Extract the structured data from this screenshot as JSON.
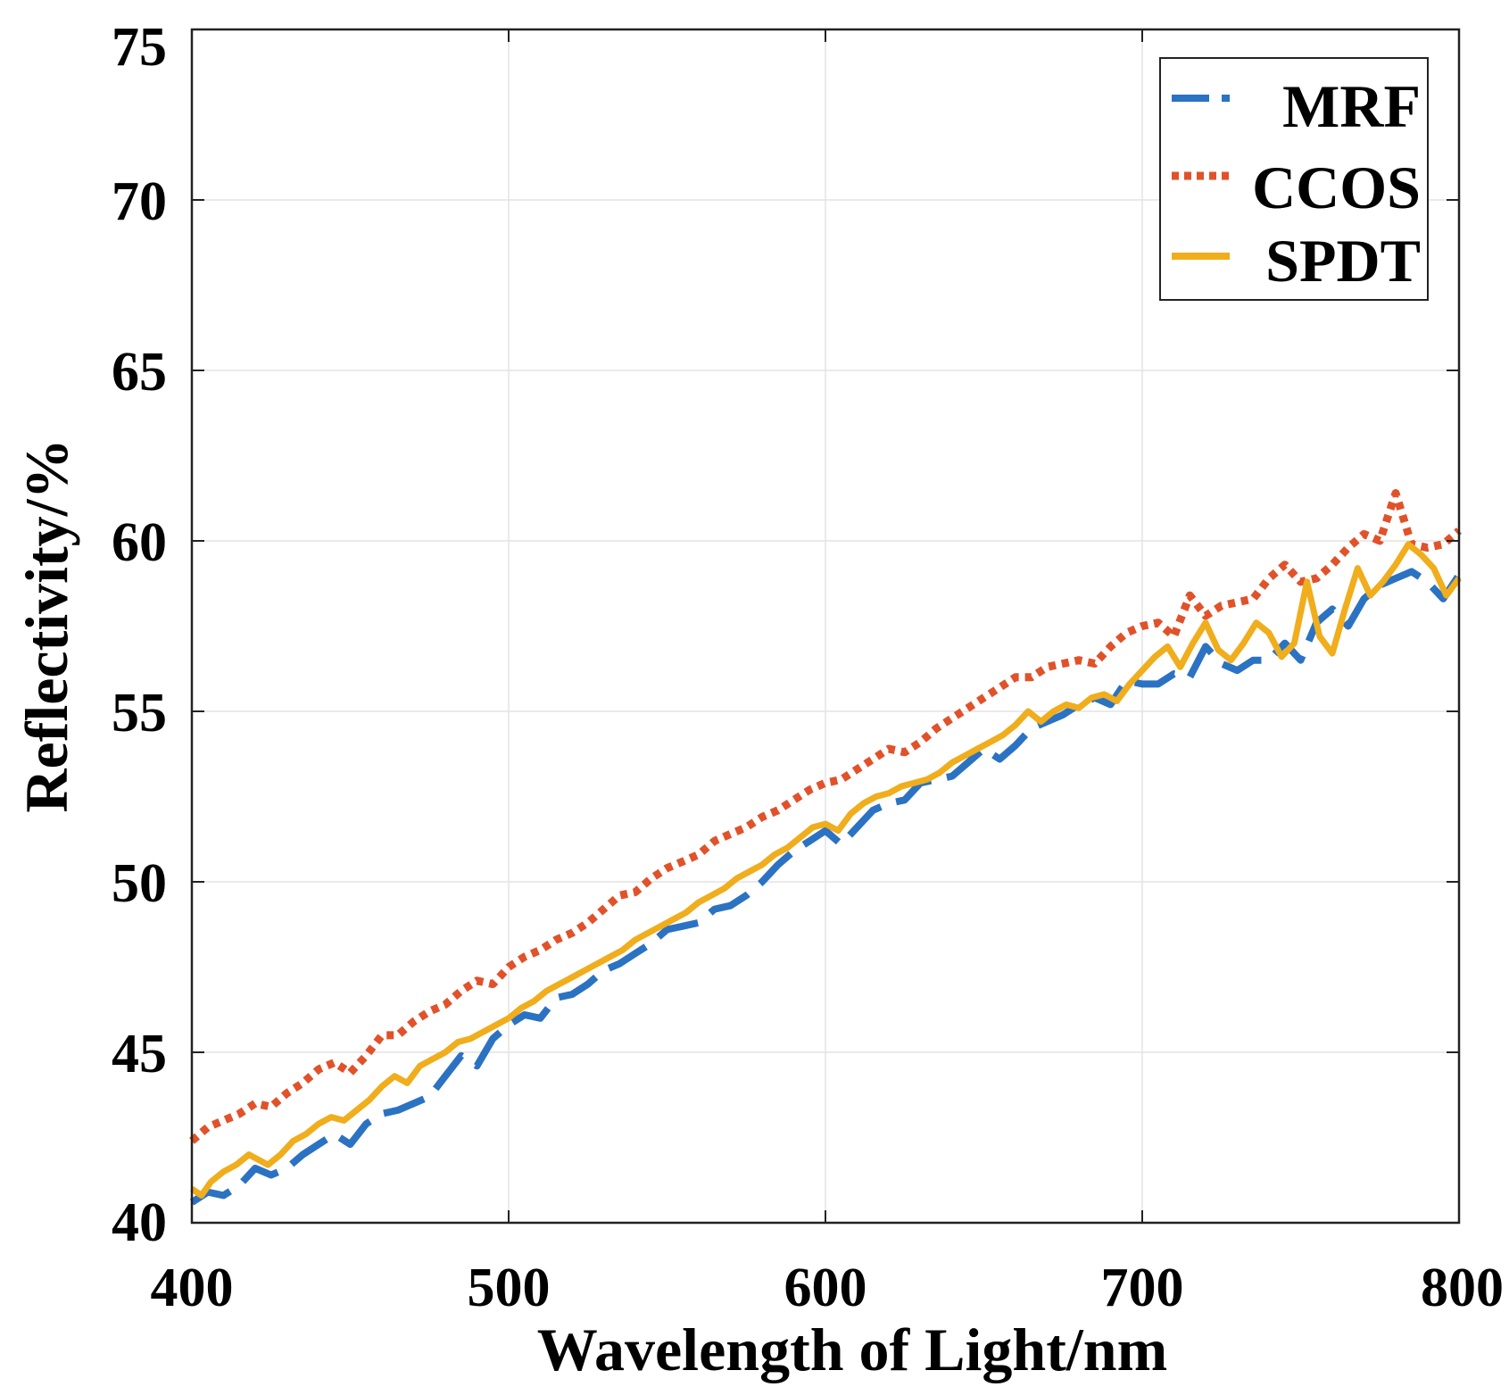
{
  "chart_data": {
    "type": "line",
    "title": "",
    "xlabel": "Wavelength of Light/nm",
    "ylabel": "Reflectivity/%",
    "xlim": [
      400,
      800
    ],
    "ylim": [
      40,
      75
    ],
    "xticks": [
      400,
      500,
      600,
      700,
      800
    ],
    "yticks": [
      40,
      45,
      50,
      55,
      60,
      65,
      70,
      75
    ],
    "grid": true,
    "legend_position": "top-right",
    "series": [
      {
        "name": "MRF",
        "color": "#2b72c3",
        "style": "dashed",
        "x": [
          400,
          405,
          410,
          415,
          420,
          425,
          430,
          435,
          440,
          445,
          450,
          455,
          460,
          465,
          470,
          475,
          480,
          485,
          490,
          495,
          500,
          505,
          510,
          515,
          520,
          525,
          530,
          535,
          540,
          545,
          550,
          555,
          560,
          565,
          570,
          575,
          580,
          585,
          590,
          595,
          600,
          605,
          610,
          615,
          620,
          625,
          630,
          635,
          640,
          645,
          650,
          655,
          660,
          665,
          670,
          675,
          680,
          685,
          690,
          695,
          700,
          705,
          710,
          715,
          720,
          725,
          730,
          735,
          740,
          745,
          750,
          755,
          760,
          765,
          770,
          775,
          780,
          785,
          790,
          795,
          800
        ],
        "y": [
          40.6,
          40.9,
          40.8,
          41.1,
          41.6,
          41.4,
          41.6,
          42.0,
          42.3,
          42.6,
          42.3,
          42.9,
          43.2,
          43.3,
          43.5,
          43.7,
          44.3,
          44.9,
          44.6,
          45.4,
          45.8,
          46.1,
          46.0,
          46.6,
          46.7,
          47.0,
          47.4,
          47.6,
          47.9,
          48.2,
          48.6,
          48.7,
          48.8,
          49.2,
          49.3,
          49.6,
          50.0,
          50.5,
          50.9,
          51.2,
          51.5,
          51.1,
          51.6,
          52.1,
          52.3,
          52.4,
          52.9,
          53.0,
          53.1,
          53.5,
          53.9,
          53.6,
          54.0,
          54.5,
          54.7,
          54.9,
          55.2,
          55.4,
          55.2,
          55.9,
          55.8,
          55.8,
          56.1,
          56.0,
          56.9,
          56.4,
          56.2,
          56.5,
          56.5,
          57.0,
          56.5,
          57.6,
          58.0,
          57.5,
          58.3,
          58.7,
          58.9,
          59.1,
          58.8,
          58.3,
          59.0
        ]
      },
      {
        "name": "CCOS",
        "color": "#e1522a",
        "style": "dotted",
        "x": [
          400,
          405,
          410,
          415,
          420,
          425,
          430,
          435,
          440,
          445,
          450,
          455,
          460,
          465,
          470,
          475,
          480,
          485,
          490,
          495,
          500,
          505,
          510,
          515,
          520,
          525,
          530,
          535,
          540,
          545,
          550,
          555,
          560,
          565,
          570,
          575,
          580,
          585,
          590,
          595,
          600,
          605,
          610,
          615,
          620,
          625,
          630,
          635,
          640,
          645,
          650,
          655,
          660,
          665,
          670,
          675,
          680,
          685,
          690,
          695,
          700,
          705,
          710,
          715,
          720,
          725,
          730,
          735,
          740,
          745,
          750,
          755,
          760,
          765,
          770,
          775,
          780,
          785,
          790,
          795,
          800
        ],
        "y": [
          42.4,
          42.8,
          43.0,
          43.2,
          43.5,
          43.4,
          43.8,
          44.1,
          44.5,
          44.7,
          44.4,
          44.9,
          45.5,
          45.5,
          45.9,
          46.2,
          46.4,
          46.8,
          47.1,
          47.0,
          47.5,
          47.8,
          48.0,
          48.3,
          48.5,
          48.8,
          49.2,
          49.6,
          49.7,
          50.1,
          50.4,
          50.6,
          50.8,
          51.2,
          51.4,
          51.6,
          51.9,
          52.1,
          52.4,
          52.7,
          52.9,
          53.0,
          53.3,
          53.6,
          53.9,
          53.8,
          54.1,
          54.5,
          54.8,
          55.1,
          55.4,
          55.7,
          56.0,
          56.0,
          56.3,
          56.4,
          56.5,
          56.4,
          56.9,
          57.3,
          57.5,
          57.6,
          57.2,
          58.4,
          57.8,
          58.1,
          58.2,
          58.3,
          58.9,
          59.3,
          58.8,
          58.9,
          59.3,
          59.8,
          60.2,
          60.0,
          61.4,
          59.9,
          59.8,
          59.9,
          60.3
        ]
      },
      {
        "name": "SPDT",
        "color": "#f0ad1c",
        "style": "solid",
        "x": [
          400,
          403,
          406,
          410,
          414,
          418,
          420,
          424,
          428,
          432,
          436,
          440,
          444,
          448,
          452,
          456,
          460,
          464,
          468,
          472,
          476,
          480,
          484,
          488,
          492,
          496,
          500,
          504,
          508,
          512,
          516,
          520,
          524,
          528,
          532,
          536,
          540,
          544,
          548,
          552,
          556,
          560,
          564,
          568,
          572,
          576,
          580,
          584,
          588,
          592,
          596,
          600,
          604,
          608,
          612,
          616,
          620,
          624,
          628,
          632,
          636,
          640,
          644,
          648,
          652,
          656,
          660,
          664,
          668,
          672,
          676,
          680,
          684,
          688,
          692,
          696,
          700,
          704,
          708,
          712,
          716,
          720,
          724,
          728,
          732,
          736,
          740,
          744,
          748,
          752,
          756,
          760,
          764,
          768,
          772,
          776,
          780,
          784,
          788,
          792,
          796,
          800
        ],
        "y": [
          41.0,
          40.8,
          41.2,
          41.5,
          41.7,
          42.0,
          41.9,
          41.7,
          42.0,
          42.4,
          42.6,
          42.9,
          43.1,
          43.0,
          43.3,
          43.6,
          44.0,
          44.3,
          44.1,
          44.6,
          44.8,
          45.0,
          45.3,
          45.4,
          45.6,
          45.8,
          46.0,
          46.3,
          46.5,
          46.8,
          47.0,
          47.2,
          47.4,
          47.6,
          47.8,
          48.0,
          48.3,
          48.5,
          48.7,
          48.9,
          49.1,
          49.4,
          49.6,
          49.8,
          50.1,
          50.3,
          50.5,
          50.8,
          51.0,
          51.3,
          51.6,
          51.7,
          51.5,
          52.0,
          52.3,
          52.5,
          52.6,
          52.8,
          52.9,
          53.0,
          53.2,
          53.5,
          53.7,
          53.9,
          54.1,
          54.3,
          54.6,
          55.0,
          54.7,
          55.0,
          55.2,
          55.1,
          55.4,
          55.5,
          55.3,
          55.8,
          56.2,
          56.6,
          56.9,
          56.3,
          57.0,
          57.6,
          56.8,
          56.5,
          57.0,
          57.6,
          57.3,
          56.6,
          57.0,
          58.8,
          57.2,
          56.7,
          58.0,
          59.2,
          58.4,
          58.8,
          59.3,
          59.9,
          59.6,
          59.2,
          58.4,
          58.9
        ]
      }
    ]
  }
}
